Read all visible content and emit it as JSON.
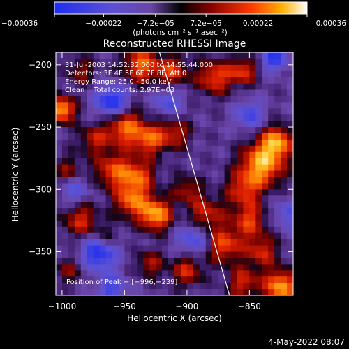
{
  "chart_data": {
    "type": "heatmap",
    "title": "Reconstructed RHESSI Image",
    "xlabel": "Heliocentric X (arcsec)",
    "ylabel": "Heliocentric Y (arcsec)",
    "xlim": [
      -1005,
      -815
    ],
    "ylim": [
      -385,
      -190
    ],
    "xticks": [
      -1000,
      -950,
      -900,
      -850
    ],
    "xtick_labels": [
      "−1000",
      "−950",
      "−900",
      "−850"
    ],
    "yticks": [
      -200,
      -250,
      -300,
      -350
    ],
    "ytick_labels": [
      "−200",
      "−250",
      "−300",
      "−350"
    ],
    "colorbar": {
      "range": [
        -0.00036,
        0.00036
      ],
      "ticks": [
        -0.00036,
        -0.00022,
        -7.2e-05,
        7.2e-05,
        0.00022,
        0.00036
      ],
      "tick_labels": [
        "−0.00036",
        "−0.00022",
        "−7.2e−05",
        "7.2e−05",
        "0.00022",
        "0.00036"
      ],
      "units_label": "(photons cm⁻² s⁻¹ asec⁻²)"
    },
    "info_lines": [
      "31-Jul-2003 14:52:32.000 to 14:55:44.000",
      "Detectors: 3F 4F 5F 6F 7F 8F, Att 0",
      "Energy Range: 25.0 - 50.0 keV",
      "Clean    Total counts: 2.97E+03"
    ],
    "peak_label": "Position of Peak = [−996,−239]",
    "limb_line": [
      [
        -922,
        -190
      ],
      [
        -866,
        -385
      ]
    ],
    "blobs": [
      {
        "x": -1000,
        "y": -236,
        "v": 1.0,
        "s": 7
      },
      {
        "x": -937,
        "y": -200,
        "v": 0.75,
        "s": 10
      },
      {
        "x": -912,
        "y": -205,
        "v": 0.6,
        "s": 9
      },
      {
        "x": -878,
        "y": -210,
        "v": 0.65,
        "s": 10
      },
      {
        "x": -855,
        "y": -205,
        "v": 0.6,
        "s": 8
      },
      {
        "x": -985,
        "y": -205,
        "v": 0.4,
        "s": 8
      },
      {
        "x": -975,
        "y": -260,
        "v": 0.45,
        "s": 9
      },
      {
        "x": -950,
        "y": -250,
        "v": 0.75,
        "s": 11
      },
      {
        "x": -930,
        "y": -260,
        "v": 0.65,
        "s": 9
      },
      {
        "x": -910,
        "y": -255,
        "v": 0.5,
        "s": 9
      },
      {
        "x": -960,
        "y": -285,
        "v": 0.6,
        "s": 10
      },
      {
        "x": -940,
        "y": -290,
        "v": 0.7,
        "s": 10
      },
      {
        "x": -995,
        "y": -285,
        "v": 0.4,
        "s": 8
      },
      {
        "x": -925,
        "y": -320,
        "v": 0.95,
        "s": 9
      },
      {
        "x": -945,
        "y": -310,
        "v": 0.7,
        "s": 9
      },
      {
        "x": -985,
        "y": -325,
        "v": 0.55,
        "s": 10
      },
      {
        "x": -965,
        "y": -340,
        "v": 0.45,
        "s": 8
      },
      {
        "x": -885,
        "y": -320,
        "v": 0.55,
        "s": 10
      },
      {
        "x": -900,
        "y": -300,
        "v": 0.45,
        "s": 8
      },
      {
        "x": -840,
        "y": -280,
        "v": 0.95,
        "s": 12
      },
      {
        "x": -828,
        "y": -262,
        "v": 0.85,
        "s": 9
      },
      {
        "x": -855,
        "y": -300,
        "v": 0.55,
        "s": 10
      },
      {
        "x": -850,
        "y": -325,
        "v": 0.6,
        "s": 10
      },
      {
        "x": -870,
        "y": -345,
        "v": 0.65,
        "s": 10
      },
      {
        "x": -840,
        "y": -350,
        "v": 0.55,
        "s": 9
      },
      {
        "x": -900,
        "y": -365,
        "v": 0.55,
        "s": 9
      },
      {
        "x": -930,
        "y": -360,
        "v": 0.45,
        "s": 8
      },
      {
        "x": -825,
        "y": -378,
        "v": 0.95,
        "s": 9
      },
      {
        "x": -855,
        "y": -375,
        "v": 0.55,
        "s": 9
      },
      {
        "x": -995,
        "y": -365,
        "v": 0.35,
        "s": 8
      },
      {
        "x": -960,
        "y": -230,
        "v": -0.85,
        "s": 9
      },
      {
        "x": -970,
        "y": -350,
        "v": -0.9,
        "s": 10
      },
      {
        "x": -850,
        "y": -240,
        "v": -0.55,
        "s": 8
      },
      {
        "x": -830,
        "y": -195,
        "v": -0.7,
        "s": 7
      },
      {
        "x": -895,
        "y": -340,
        "v": -0.55,
        "s": 9
      },
      {
        "x": -990,
        "y": -300,
        "v": -0.45,
        "s": 8
      },
      {
        "x": -915,
        "y": -230,
        "v": -0.5,
        "s": 8
      },
      {
        "x": -960,
        "y": -380,
        "v": -0.55,
        "s": 8
      },
      {
        "x": -820,
        "y": -320,
        "v": -0.45,
        "s": 8
      }
    ]
  },
  "footer": {
    "date": "4-May-2022 08:07"
  }
}
